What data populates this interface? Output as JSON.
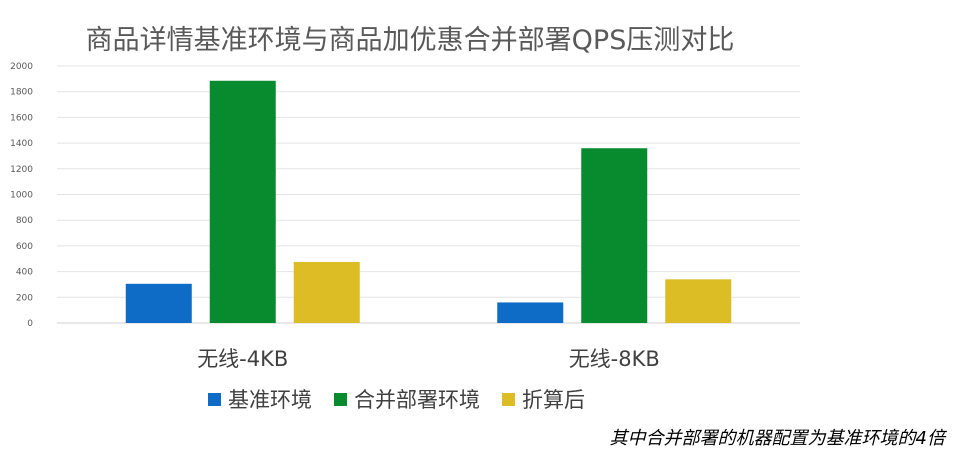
{
  "chart_data": {
    "type": "bar",
    "title": "商品详情基准环境与商品加优惠合并部署QPS压测对比",
    "categories": [
      "无线-4KB",
      "无线-8KB"
    ],
    "series": [
      {
        "name": "基准环境",
        "color": "#0f6cc6",
        "values": [
          305,
          160
        ]
      },
      {
        "name": "合并部署环境",
        "color": "#088a2e",
        "values": [
          1885,
          1360
        ]
      },
      {
        "name": "折算后",
        "color": "#dcbd25",
        "values": [
          475,
          340
        ]
      }
    ],
    "ylim": [
      0,
      2000
    ],
    "yticks": [
      0,
      200,
      400,
      600,
      800,
      1000,
      1200,
      1400,
      1600,
      1800,
      2000
    ],
    "grid": true,
    "legend_position": "bottom",
    "xlabel": "",
    "ylabel": ""
  },
  "footnote": "其中合并部署的机器配置为基准环境的4倍"
}
